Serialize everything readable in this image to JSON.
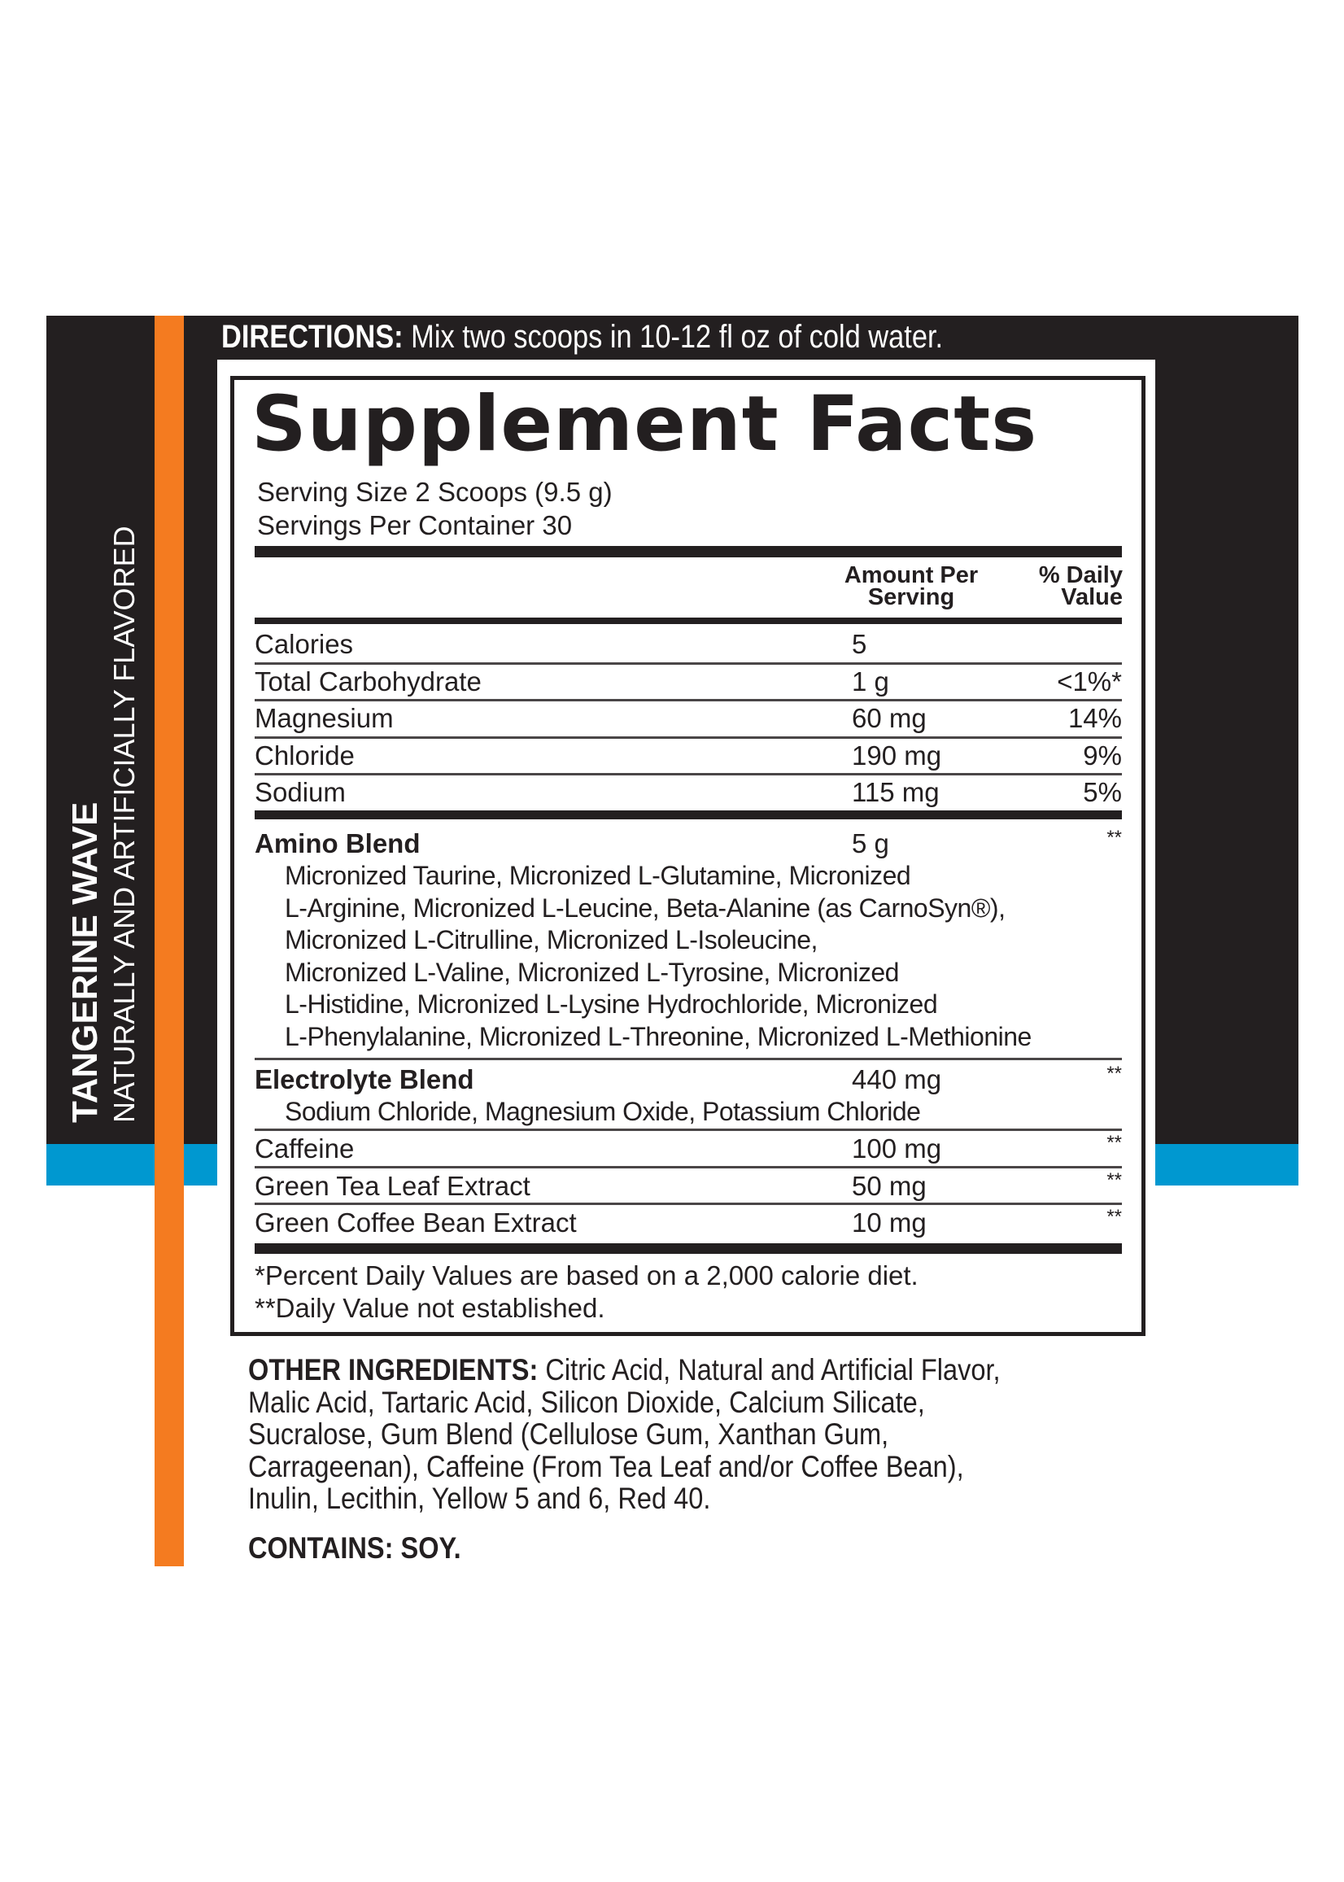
{
  "colors": {
    "band": "#231f20",
    "accent_orange": "#f47b20",
    "accent_blue": "#0098d0"
  },
  "side": {
    "flavor_name": "TANGERINE WAVE",
    "flavor_note": "NATURALLY AND ARTIFICIALLY FLAVORED"
  },
  "directions": {
    "label": "DIRECTIONS:",
    "text": " Mix two scoops in 10-12 fl oz of cold water."
  },
  "facts": {
    "title": "Supplement Facts",
    "serving_size": "Serving Size 2 Scoops (9.5 g)",
    "servings_per_container": "Servings Per Container 30",
    "header": {
      "amount_1": "Amount Per",
      "amount_2": "Serving",
      "dv_1": "% Daily",
      "dv_2": "Value"
    },
    "rows": [
      {
        "name": "Calories",
        "amount": "5",
        "dv": ""
      },
      {
        "name": "Total Carbohydrate",
        "amount": "1 g",
        "dv": "<1%*"
      },
      {
        "name": "Magnesium",
        "amount": "60 mg",
        "dv": "14%"
      },
      {
        "name": "Chloride",
        "amount": "190 mg",
        "dv": "9%"
      },
      {
        "name": "Sodium",
        "amount": "115 mg",
        "dv": "5%"
      }
    ],
    "amino": {
      "name": "Amino Blend",
      "amount": "5 g",
      "dv": "**",
      "lines": [
        "Micronized Taurine, Micronized L-Glutamine, Micronized",
        "L-Arginine, Micronized L-Leucine, Beta-Alanine (as CarnoSyn®),",
        "Micronized L-Citrulline, Micronized L-Isoleucine,",
        "Micronized L-Valine, Micronized L-Tyrosine, Micronized",
        "L-Histidine, Micronized L-Lysine Hydrochloride, Micronized",
        "L-Phenylalanine, Micronized L-Threonine, Micronized L-Methionine"
      ]
    },
    "electrolyte": {
      "name": "Electrolyte Blend",
      "amount": "440 mg",
      "dv": "**",
      "line": "Sodium Chloride, Magnesium Oxide, Potassium Chloride"
    },
    "rows2": [
      {
        "name": "Caffeine",
        "amount": "100 mg",
        "dv": "**"
      },
      {
        "name": "Green Tea Leaf Extract",
        "amount": "50 mg",
        "dv": "**"
      },
      {
        "name": "Green Coffee Bean Extract",
        "amount": "10 mg",
        "dv": "**"
      }
    ],
    "footnote_1": "*Percent Daily Values are based on a 2,000 calorie diet.",
    "footnote_2": "**Daily Value not established."
  },
  "other": {
    "label": "OTHER INGREDIENTS:",
    "lines": [
      " Citric Acid, Natural and Artificial Flavor,",
      "Malic Acid, Tartaric Acid, Silicon Dioxide, Calcium Silicate,",
      "Sucralose, Gum Blend (Cellulose Gum, Xanthan Gum,",
      "Carrageenan), Caffeine (From Tea Leaf and/or Coffee Bean),",
      "Inulin, Lecithin, Yellow 5 and 6, Red 40."
    ]
  },
  "contains": "CONTAINS: SOY."
}
